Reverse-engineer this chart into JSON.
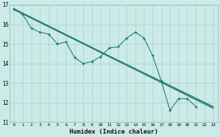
{
  "xlabel": "Humidex (Indice chaleur)",
  "bg_color": "#cceae7",
  "grid_color": "#aad4d0",
  "line_color": "#1a7a6e",
  "xlim": [
    -0.5,
    23.5
  ],
  "ylim": [
    11,
    17
  ],
  "xtick_labels": [
    "0",
    "1",
    "2",
    "3",
    "4",
    "5",
    "6",
    "7",
    "8",
    "9",
    "10",
    "11",
    "12",
    "13",
    "14",
    "15",
    "16",
    "17",
    "18",
    "19",
    "20",
    "21",
    "22",
    "23"
  ],
  "ytick_labels": [
    "11",
    "12",
    "13",
    "14",
    "15",
    "16",
    "17"
  ],
  "yticks": [
    11,
    12,
    13,
    14,
    15,
    16,
    17
  ],
  "series_main": {
    "x": [
      0,
      1,
      2,
      3,
      4,
      5,
      6,
      7,
      8,
      9,
      10,
      11,
      12,
      13,
      14,
      15,
      16,
      17,
      18,
      19,
      20,
      21
    ],
    "y": [
      16.8,
      16.5,
      15.8,
      15.6,
      15.5,
      15.0,
      15.1,
      14.3,
      14.0,
      14.1,
      14.35,
      14.8,
      14.85,
      15.3,
      15.6,
      15.3,
      14.4,
      13.1,
      11.6,
      12.2,
      12.2,
      11.8
    ]
  },
  "series_line1": {
    "x": [
      0,
      23
    ],
    "y": [
      16.8,
      11.75
    ]
  },
  "series_line2": {
    "x": [
      0,
      23
    ],
    "y": [
      16.75,
      11.8
    ]
  },
  "series_line3": {
    "x": [
      0,
      23
    ],
    "y": [
      16.75,
      11.7
    ]
  }
}
